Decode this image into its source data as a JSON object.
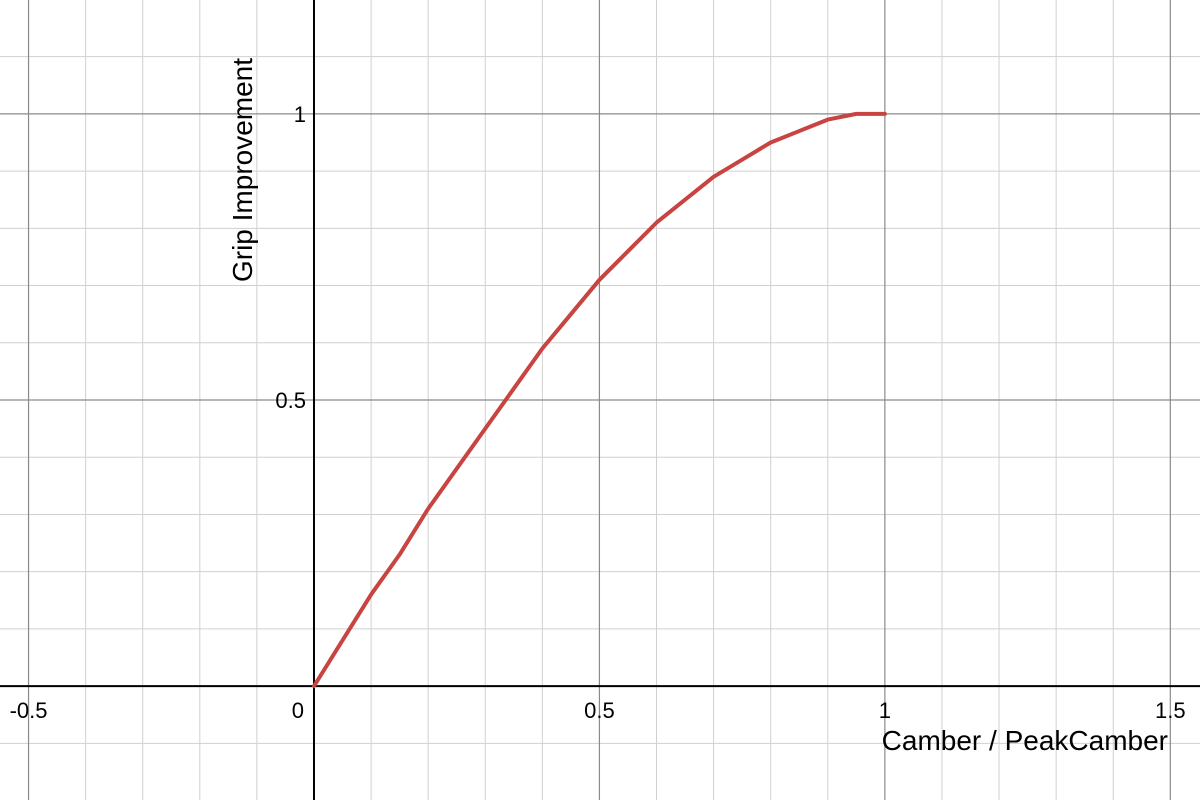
{
  "chart_data": {
    "type": "line",
    "xlabel": "Camber / PeakCamber",
    "ylabel": "Grip Improvement",
    "x": [
      0,
      0.05,
      0.1,
      0.15,
      0.2,
      0.25,
      0.3,
      0.35,
      0.4,
      0.45,
      0.5,
      0.55,
      0.6,
      0.65,
      0.7,
      0.75,
      0.8,
      0.85,
      0.9,
      0.95,
      1
    ],
    "values": [
      0,
      0.08,
      0.16,
      0.23,
      0.31,
      0.38,
      0.45,
      0.52,
      0.59,
      0.65,
      0.71,
      0.76,
      0.81,
      0.85,
      0.89,
      0.92,
      0.95,
      0.97,
      0.99,
      1.0,
      1
    ],
    "color": "#c74440",
    "xlim": [
      -0.55,
      1.552
    ],
    "ylim": [
      -0.199,
      1.199
    ],
    "xticks": [
      -0.5,
      0,
      0.5,
      1,
      1.5
    ],
    "yticks": [
      0.5,
      1
    ],
    "xminorticks": [
      -0.4,
      -0.3,
      -0.2,
      -0.1,
      0.1,
      0.2,
      0.3,
      0.4,
      0.6,
      0.7,
      0.8,
      0.9,
      1.1,
      1.2,
      1.3,
      1.4
    ],
    "yminorticks": [
      -0.1,
      0.1,
      0.2,
      0.3,
      0.4,
      0.6,
      0.7,
      0.8,
      0.9,
      1.1
    ],
    "grid": true
  }
}
